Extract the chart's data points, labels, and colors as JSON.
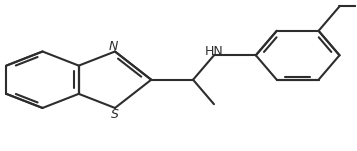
{
  "bg_color": "#ffffff",
  "line_color": "#2d2d2d",
  "line_width": 1.5,
  "text_color": "#2d2d2d",
  "font_size": 8.5,
  "figsize": [
    3.57,
    1.51
  ],
  "dpi": 100,
  "xlim": [
    -1.0,
    7.5
  ],
  "ylim": [
    -2.5,
    2.8
  ]
}
